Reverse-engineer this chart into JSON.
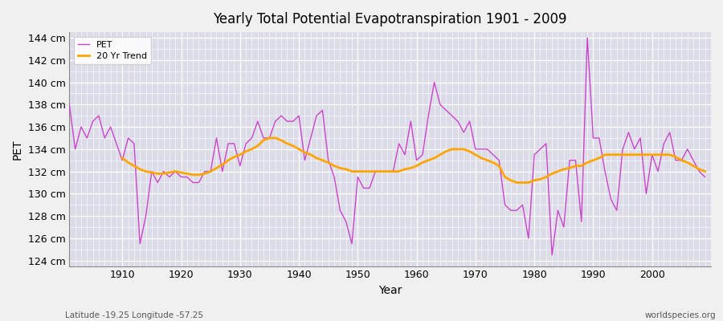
{
  "title": "Yearly Total Potential Evapotranspiration 1901 - 2009",
  "xlabel": "Year",
  "ylabel": "PET",
  "bottom_left": "Latitude -19.25 Longitude -57.25",
  "bottom_right": "worldspecies.org",
  "pet_color": "#CC44CC",
  "trend_color": "#FFA500",
  "bg_color": "#DCDCE8",
  "fig_color": "#F0F0F0",
  "ylim": [
    123.5,
    144.5
  ],
  "yticks": [
    124,
    126,
    128,
    130,
    132,
    134,
    136,
    138,
    140,
    142,
    144
  ],
  "xlim": [
    1901,
    2010
  ],
  "xticks": [
    1910,
    1920,
    1930,
    1940,
    1950,
    1960,
    1970,
    1980,
    1990,
    2000
  ],
  "years": [
    1901,
    1902,
    1903,
    1904,
    1905,
    1906,
    1907,
    1908,
    1909,
    1910,
    1911,
    1912,
    1913,
    1914,
    1915,
    1916,
    1917,
    1918,
    1919,
    1920,
    1921,
    1922,
    1923,
    1924,
    1925,
    1926,
    1927,
    1928,
    1929,
    1930,
    1931,
    1932,
    1933,
    1934,
    1935,
    1936,
    1937,
    1938,
    1939,
    1940,
    1941,
    1942,
    1943,
    1944,
    1945,
    1946,
    1947,
    1948,
    1949,
    1950,
    1951,
    1952,
    1953,
    1954,
    1955,
    1956,
    1957,
    1958,
    1959,
    1960,
    1961,
    1962,
    1963,
    1964,
    1965,
    1966,
    1967,
    1968,
    1969,
    1970,
    1971,
    1972,
    1973,
    1974,
    1975,
    1976,
    1977,
    1978,
    1979,
    1980,
    1981,
    1982,
    1983,
    1984,
    1985,
    1986,
    1987,
    1988,
    1989,
    1990,
    1991,
    1992,
    1993,
    1994,
    1995,
    1996,
    1997,
    1998,
    1999,
    2000,
    2001,
    2002,
    2003,
    2004,
    2005,
    2006,
    2007,
    2008,
    2009
  ],
  "pet": [
    138.0,
    134.0,
    136.0,
    135.0,
    136.5,
    137.0,
    135.0,
    136.0,
    134.5,
    133.0,
    135.0,
    134.5,
    125.5,
    128.0,
    132.0,
    131.0,
    132.0,
    131.5,
    132.0,
    131.5,
    131.5,
    131.0,
    131.0,
    132.0,
    132.0,
    135.0,
    132.0,
    134.5,
    134.5,
    132.5,
    134.5,
    135.0,
    136.5,
    135.0,
    135.0,
    136.5,
    137.0,
    136.5,
    136.5,
    137.0,
    133.0,
    135.0,
    137.0,
    137.5,
    133.0,
    131.5,
    128.5,
    127.5,
    125.5,
    131.5,
    130.5,
    130.5,
    132.0,
    132.0,
    132.0,
    132.0,
    134.5,
    133.5,
    136.5,
    133.0,
    133.5,
    137.0,
    140.0,
    138.0,
    137.5,
    137.0,
    136.5,
    135.5,
    136.5,
    134.0,
    134.0,
    134.0,
    133.5,
    133.0,
    129.0,
    128.5,
    128.5,
    129.0,
    126.0,
    133.5,
    134.0,
    134.5,
    124.5,
    128.5,
    127.0,
    133.0,
    133.0,
    127.5,
    144.0,
    135.0,
    135.0,
    132.0,
    129.5,
    128.5,
    134.0,
    135.5,
    134.0,
    135.0,
    130.0,
    133.5,
    132.0,
    134.5,
    135.5,
    133.0,
    133.0,
    134.0,
    133.0,
    132.0,
    131.5
  ],
  "trend": [
    [
      1910,
      133.2
    ],
    [
      1911,
      132.8
    ],
    [
      1912,
      132.5
    ],
    [
      1913,
      132.2
    ],
    [
      1914,
      132.0
    ],
    [
      1915,
      131.9
    ],
    [
      1916,
      131.8
    ],
    [
      1917,
      131.8
    ],
    [
      1918,
      131.9
    ],
    [
      1919,
      132.0
    ],
    [
      1920,
      131.9
    ],
    [
      1921,
      131.8
    ],
    [
      1922,
      131.7
    ],
    [
      1923,
      131.7
    ],
    [
      1924,
      131.8
    ],
    [
      1925,
      132.0
    ],
    [
      1926,
      132.3
    ],
    [
      1927,
      132.6
    ],
    [
      1928,
      133.0
    ],
    [
      1929,
      133.3
    ],
    [
      1930,
      133.5
    ],
    [
      1931,
      133.8
    ],
    [
      1932,
      134.0
    ],
    [
      1933,
      134.3
    ],
    [
      1934,
      134.8
    ],
    [
      1935,
      135.0
    ],
    [
      1936,
      135.0
    ],
    [
      1937,
      134.8
    ],
    [
      1938,
      134.5
    ],
    [
      1939,
      134.3
    ],
    [
      1940,
      134.0
    ],
    [
      1941,
      133.7
    ],
    [
      1942,
      133.5
    ],
    [
      1943,
      133.2
    ],
    [
      1944,
      133.0
    ],
    [
      1945,
      132.8
    ],
    [
      1946,
      132.5
    ],
    [
      1947,
      132.3
    ],
    [
      1948,
      132.2
    ],
    [
      1949,
      132.0
    ],
    [
      1950,
      132.0
    ],
    [
      1951,
      132.0
    ],
    [
      1952,
      132.0
    ],
    [
      1953,
      132.0
    ],
    [
      1954,
      132.0
    ],
    [
      1955,
      132.0
    ],
    [
      1956,
      132.0
    ],
    [
      1957,
      132.0
    ],
    [
      1958,
      132.2
    ],
    [
      1959,
      132.3
    ],
    [
      1960,
      132.5
    ],
    [
      1961,
      132.8
    ],
    [
      1962,
      133.0
    ],
    [
      1963,
      133.2
    ],
    [
      1964,
      133.5
    ],
    [
      1965,
      133.8
    ],
    [
      1966,
      134.0
    ],
    [
      1967,
      134.0
    ],
    [
      1968,
      134.0
    ],
    [
      1969,
      133.8
    ],
    [
      1970,
      133.5
    ],
    [
      1971,
      133.2
    ],
    [
      1972,
      133.0
    ],
    [
      1973,
      132.8
    ],
    [
      1974,
      132.5
    ],
    [
      1975,
      131.5
    ],
    [
      1976,
      131.2
    ],
    [
      1977,
      131.0
    ],
    [
      1978,
      131.0
    ],
    [
      1979,
      131.0
    ],
    [
      1980,
      131.2
    ],
    [
      1981,
      131.3
    ],
    [
      1982,
      131.5
    ],
    [
      1983,
      131.8
    ],
    [
      1984,
      132.0
    ],
    [
      1985,
      132.2
    ],
    [
      1986,
      132.3
    ],
    [
      1987,
      132.5
    ],
    [
      1988,
      132.5
    ],
    [
      1989,
      132.8
    ],
    [
      1990,
      133.0
    ],
    [
      1991,
      133.2
    ],
    [
      1992,
      133.5
    ],
    [
      1993,
      133.5
    ],
    [
      1994,
      133.5
    ],
    [
      1995,
      133.5
    ],
    [
      1996,
      133.5
    ],
    [
      1997,
      133.5
    ],
    [
      1998,
      133.5
    ],
    [
      1999,
      133.5
    ],
    [
      2000,
      133.5
    ],
    [
      2001,
      133.5
    ],
    [
      2002,
      133.5
    ],
    [
      2003,
      133.5
    ],
    [
      2004,
      133.3
    ],
    [
      2005,
      133.0
    ],
    [
      2006,
      132.8
    ],
    [
      2007,
      132.5
    ],
    [
      2008,
      132.2
    ],
    [
      2009,
      132.0
    ]
  ]
}
